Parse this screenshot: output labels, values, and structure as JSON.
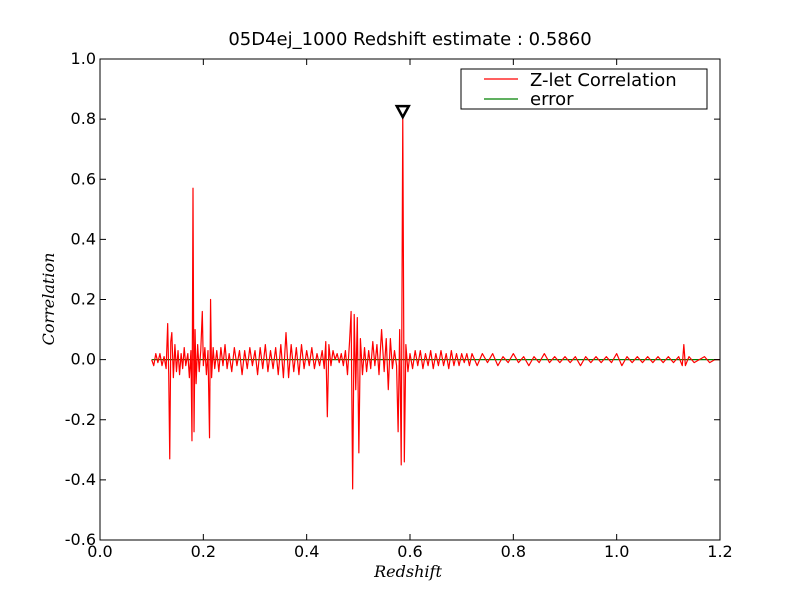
{
  "chart_data": {
    "type": "line",
    "title": "05D4ej_1000 Redshift estimate : 0.5860",
    "xlabel": "Redshift",
    "ylabel": "Correlation",
    "xlim": [
      0.0,
      1.2
    ],
    "ylim": [
      -0.6,
      1.0
    ],
    "xticks": [
      0.0,
      0.2,
      0.4,
      0.6,
      0.8,
      1.0,
      1.2
    ],
    "xtick_labels": [
      "0.0",
      "0.2",
      "0.4",
      "0.6",
      "0.8",
      "1.0",
      "1.2"
    ],
    "yticks": [
      -0.6,
      -0.4,
      -0.2,
      0.0,
      0.2,
      0.4,
      0.6,
      0.8,
      1.0
    ],
    "ytick_labels": [
      "-0.6",
      "-0.4",
      "-0.2",
      "0.0",
      "0.2",
      "0.4",
      "0.6",
      "0.8",
      "1.0"
    ],
    "grid": false,
    "legend_position": "top-right",
    "series": [
      {
        "name": "Z-let Correlation",
        "color": "#ff0000",
        "points": [
          [
            0.1,
            0.0
          ],
          [
            0.104,
            -0.02
          ],
          [
            0.108,
            0.02
          ],
          [
            0.112,
            -0.01
          ],
          [
            0.116,
            0.02
          ],
          [
            0.12,
            -0.02
          ],
          [
            0.124,
            0.01
          ],
          [
            0.128,
            -0.03
          ],
          [
            0.131,
            0.12
          ],
          [
            0.133,
            -0.05
          ],
          [
            0.135,
            -0.33
          ],
          [
            0.137,
            0.06
          ],
          [
            0.139,
            0.09
          ],
          [
            0.142,
            -0.06
          ],
          [
            0.145,
            0.05
          ],
          [
            0.148,
            -0.04
          ],
          [
            0.151,
            0.03
          ],
          [
            0.154,
            -0.05
          ],
          [
            0.157,
            0.02
          ],
          [
            0.16,
            -0.03
          ],
          [
            0.163,
            0.04
          ],
          [
            0.166,
            -0.02
          ],
          [
            0.17,
            0.02
          ],
          [
            0.173,
            -0.06
          ],
          [
            0.176,
            0.03
          ],
          [
            0.178,
            -0.27
          ],
          [
            0.18,
            0.57
          ],
          [
            0.182,
            -0.24
          ],
          [
            0.184,
            0.1
          ],
          [
            0.186,
            -0.08
          ],
          [
            0.189,
            0.05
          ],
          [
            0.192,
            -0.04
          ],
          [
            0.195,
            0.03
          ],
          [
            0.198,
            0.16
          ],
          [
            0.2,
            -0.02
          ],
          [
            0.203,
            0.04
          ],
          [
            0.206,
            -0.05
          ],
          [
            0.209,
            0.03
          ],
          [
            0.212,
            -0.26
          ],
          [
            0.214,
            0.2
          ],
          [
            0.216,
            -0.06
          ],
          [
            0.219,
            0.04
          ],
          [
            0.222,
            -0.03
          ],
          [
            0.226,
            0.03
          ],
          [
            0.23,
            -0.04
          ],
          [
            0.234,
            0.04
          ],
          [
            0.238,
            -0.02
          ],
          [
            0.242,
            0.05
          ],
          [
            0.246,
            -0.03
          ],
          [
            0.25,
            0.02
          ],
          [
            0.255,
            -0.04
          ],
          [
            0.26,
            0.04
          ],
          [
            0.265,
            -0.02
          ],
          [
            0.27,
            0.03
          ],
          [
            0.275,
            -0.05
          ],
          [
            0.28,
            0.03
          ],
          [
            0.285,
            -0.03
          ],
          [
            0.29,
            0.04
          ],
          [
            0.295,
            -0.02
          ],
          [
            0.3,
            0.03
          ],
          [
            0.305,
            -0.05
          ],
          [
            0.31,
            0.04
          ],
          [
            0.315,
            -0.03
          ],
          [
            0.32,
            0.05
          ],
          [
            0.325,
            -0.04
          ],
          [
            0.33,
            0.03
          ],
          [
            0.335,
            -0.03
          ],
          [
            0.34,
            0.04
          ],
          [
            0.345,
            -0.05
          ],
          [
            0.35,
            0.05
          ],
          [
            0.355,
            -0.06
          ],
          [
            0.36,
            0.09
          ],
          [
            0.365,
            -0.06
          ],
          [
            0.37,
            0.05
          ],
          [
            0.375,
            -0.04
          ],
          [
            0.38,
            0.04
          ],
          [
            0.385,
            -0.05
          ],
          [
            0.39,
            0.05
          ],
          [
            0.395,
            -0.03
          ],
          [
            0.4,
            0.03
          ],
          [
            0.405,
            -0.02
          ],
          [
            0.41,
            0.04
          ],
          [
            0.415,
            -0.03
          ],
          [
            0.42,
            0.02
          ],
          [
            0.425,
            -0.02
          ],
          [
            0.43,
            0.03
          ],
          [
            0.434,
            -0.03
          ],
          [
            0.437,
            0.06
          ],
          [
            0.44,
            -0.19
          ],
          [
            0.443,
            0.05
          ],
          [
            0.447,
            -0.02
          ],
          [
            0.451,
            0.03
          ],
          [
            0.455,
            0.0
          ],
          [
            0.459,
            0.02
          ],
          [
            0.463,
            -0.01
          ],
          [
            0.467,
            0.02
          ],
          [
            0.471,
            -0.02
          ],
          [
            0.475,
            0.03
          ],
          [
            0.479,
            -0.05
          ],
          [
            0.483,
            0.06
          ],
          [
            0.486,
            0.16
          ],
          [
            0.489,
            -0.43
          ],
          [
            0.492,
            0.15
          ],
          [
            0.495,
            -0.1
          ],
          [
            0.498,
            0.14
          ],
          [
            0.501,
            -0.31
          ],
          [
            0.504,
            0.07
          ],
          [
            0.508,
            -0.05
          ],
          [
            0.512,
            0.04
          ],
          [
            0.516,
            -0.04
          ],
          [
            0.52,
            0.03
          ],
          [
            0.524,
            -0.03
          ],
          [
            0.528,
            0.06
          ],
          [
            0.532,
            -0.02
          ],
          [
            0.536,
            0.05
          ],
          [
            0.54,
            -0.05
          ],
          [
            0.545,
            0.1
          ],
          [
            0.55,
            -0.04
          ],
          [
            0.554,
            0.07
          ],
          [
            0.558,
            -0.1
          ],
          [
            0.562,
            0.07
          ],
          [
            0.566,
            -0.03
          ],
          [
            0.57,
            0.03
          ],
          [
            0.574,
            -0.02
          ],
          [
            0.577,
            -0.24
          ],
          [
            0.58,
            0.1
          ],
          [
            0.583,
            -0.35
          ],
          [
            0.586,
            0.81
          ],
          [
            0.589,
            -0.34
          ],
          [
            0.592,
            0.05
          ],
          [
            0.596,
            -0.04
          ],
          [
            0.6,
            0.02
          ],
          [
            0.605,
            -0.03
          ],
          [
            0.61,
            0.03
          ],
          [
            0.615,
            -0.02
          ],
          [
            0.62,
            0.03
          ],
          [
            0.625,
            -0.03
          ],
          [
            0.63,
            0.02
          ],
          [
            0.635,
            -0.02
          ],
          [
            0.64,
            0.03
          ],
          [
            0.645,
            -0.03
          ],
          [
            0.65,
            0.02
          ],
          [
            0.655,
            -0.02
          ],
          [
            0.66,
            0.03
          ],
          [
            0.665,
            -0.02
          ],
          [
            0.67,
            0.02
          ],
          [
            0.675,
            -0.03
          ],
          [
            0.68,
            0.03
          ],
          [
            0.685,
            -0.02
          ],
          [
            0.69,
            0.02
          ],
          [
            0.695,
            -0.02
          ],
          [
            0.7,
            0.02
          ],
          [
            0.705,
            -0.01
          ],
          [
            0.71,
            0.02
          ],
          [
            0.715,
            -0.02
          ],
          [
            0.72,
            0.02
          ],
          [
            0.73,
            -0.02
          ],
          [
            0.74,
            0.02
          ],
          [
            0.75,
            -0.01
          ],
          [
            0.76,
            0.02
          ],
          [
            0.77,
            -0.02
          ],
          [
            0.78,
            0.01
          ],
          [
            0.79,
            -0.01
          ],
          [
            0.8,
            0.02
          ],
          [
            0.81,
            -0.01
          ],
          [
            0.82,
            0.01
          ],
          [
            0.83,
            -0.02
          ],
          [
            0.84,
            0.01
          ],
          [
            0.85,
            -0.01
          ],
          [
            0.86,
            0.02
          ],
          [
            0.87,
            -0.01
          ],
          [
            0.88,
            0.01
          ],
          [
            0.89,
            -0.01
          ],
          [
            0.9,
            0.01
          ],
          [
            0.91,
            -0.01
          ],
          [
            0.92,
            0.01
          ],
          [
            0.93,
            -0.02
          ],
          [
            0.94,
            0.01
          ],
          [
            0.95,
            -0.01
          ],
          [
            0.96,
            0.01
          ],
          [
            0.97,
            -0.01
          ],
          [
            0.98,
            0.01
          ],
          [
            0.99,
            -0.01
          ],
          [
            1.0,
            0.02
          ],
          [
            1.01,
            -0.02
          ],
          [
            1.02,
            0.01
          ],
          [
            1.03,
            -0.01
          ],
          [
            1.04,
            0.01
          ],
          [
            1.05,
            -0.01
          ],
          [
            1.06,
            0.01
          ],
          [
            1.07,
            -0.01
          ],
          [
            1.08,
            0.01
          ],
          [
            1.09,
            -0.01
          ],
          [
            1.1,
            0.01
          ],
          [
            1.11,
            -0.01
          ],
          [
            1.12,
            0.01
          ],
          [
            1.127,
            -0.02
          ],
          [
            1.13,
            0.05
          ],
          [
            1.133,
            -0.02
          ],
          [
            1.14,
            0.01
          ],
          [
            1.15,
            -0.01
          ],
          [
            1.16,
            0.0
          ],
          [
            1.17,
            0.01
          ],
          [
            1.18,
            -0.01
          ],
          [
            1.19,
            0.0
          ],
          [
            1.2,
            0.0
          ]
        ]
      },
      {
        "name": "error",
        "color": "#008000",
        "points": [
          [
            0.1,
            0.0
          ],
          [
            1.2,
            0.0
          ]
        ]
      }
    ],
    "marker": {
      "x": 0.586,
      "y": 0.81,
      "shape": "triangle-down",
      "color": "#000000"
    }
  }
}
